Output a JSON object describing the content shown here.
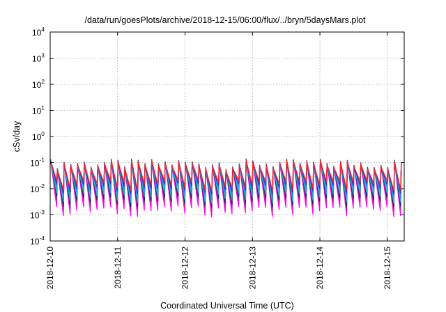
{
  "chart_data": {
    "type": "line",
    "title": "/data/run/goesPlots/archive/2018-12-15/06:00/flux/../bryn/5daysMars.plot",
    "xlabel": "Coordinated Universal Time (UTC)",
    "ylabel": "cSv/day",
    "yscale": "log",
    "ylim": [
      0.0001,
      10000
    ],
    "xlim": [
      "2018-12-10 00:00",
      "2018-12-15 06:00"
    ],
    "grid": true,
    "x_ticks": [
      "2018-12-10",
      "2018-12-11",
      "2018-12-12",
      "2018-12-13",
      "2018-12-14",
      "2018-12-15"
    ],
    "y_ticks": [
      {
        "base": "10",
        "exp": "-4"
      },
      {
        "base": "10",
        "exp": "-3"
      },
      {
        "base": "10",
        "exp": "-2"
      },
      {
        "base": "10",
        "exp": "-1"
      },
      {
        "base": "10",
        "exp": "0"
      },
      {
        "base": "10",
        "exp": "1"
      },
      {
        "base": "10",
        "exp": "2"
      },
      {
        "base": "10",
        "exp": "3"
      },
      {
        "base": "10",
        "exp": "4"
      }
    ],
    "series_colors": [
      "#ff00ff",
      "#b0306b",
      "#2a1a8a",
      "#20b2aa",
      "#1f8fff",
      "#3333cc",
      "#ff2020"
    ],
    "pattern": {
      "description_values": "sawtooth, one rise-decay cycle about every 2.4 hours",
      "period_hours": 2.4,
      "peak_envelope": [
        0.055,
        0.14
      ],
      "trough_min_by_series": [
        0.0015,
        0.0025,
        0.0035,
        0.005,
        0.008,
        0.011,
        0.015
      ]
    }
  }
}
